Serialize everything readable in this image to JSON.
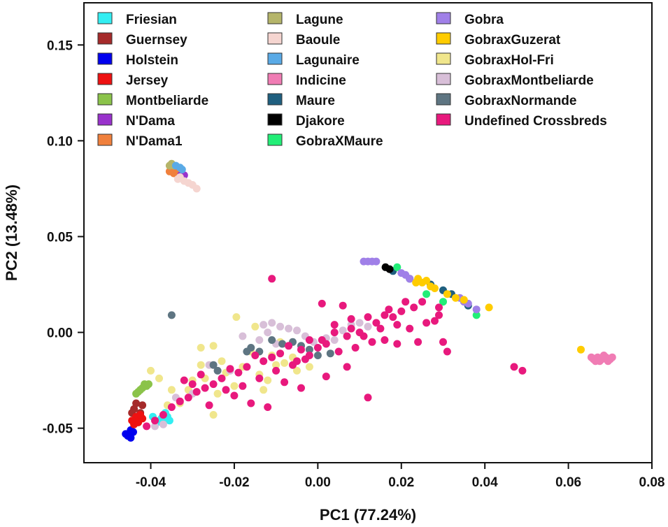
{
  "chart_data": {
    "type": "scatter",
    "xlabel": "PC1 (77.24%)",
    "ylabel": "PC2 (13.48%)",
    "xlim": [
      -0.056,
      0.08
    ],
    "ylim": [
      -0.068,
      0.172
    ],
    "x_ticks": [
      {
        "value": -0.04,
        "label": "-0.04"
      },
      {
        "value": -0.02,
        "label": "-0.02"
      },
      {
        "value": 0.0,
        "label": "0.00"
      },
      {
        "value": 0.02,
        "label": "0.02"
      },
      {
        "value": 0.04,
        "label": "0.04"
      },
      {
        "value": 0.06,
        "label": "0.06"
      },
      {
        "value": 0.08,
        "label": "0.08"
      }
    ],
    "y_ticks": [
      {
        "value": -0.05,
        "label": "-0.05"
      },
      {
        "value": 0.0,
        "label": "0.00"
      },
      {
        "value": 0.05,
        "label": "0.05"
      },
      {
        "value": 0.1,
        "label": "0.10"
      },
      {
        "value": 0.15,
        "label": "0.15"
      }
    ],
    "legend_position": "top",
    "series": [
      {
        "name": "Friesian",
        "color": "#33EEF2",
        "points": [
          [
            -0.0365,
            -0.042
          ],
          [
            -0.036,
            -0.044
          ],
          [
            -0.0355,
            -0.046
          ],
          [
            -0.037,
            -0.046
          ],
          [
            -0.0385,
            -0.047
          ],
          [
            -0.0395,
            -0.044
          ],
          [
            -0.0375,
            -0.045
          ]
        ]
      },
      {
        "name": "Guernsey",
        "color": "#A52A2A",
        "points": [
          [
            -0.0435,
            -0.037
          ],
          [
            -0.042,
            -0.038
          ],
          [
            -0.044,
            -0.04
          ],
          [
            -0.0425,
            -0.042
          ],
          [
            -0.0445,
            -0.042
          ]
        ]
      },
      {
        "name": "Holstein",
        "color": "#0000EE",
        "points": [
          [
            -0.0455,
            -0.054
          ],
          [
            -0.0448,
            -0.051
          ],
          [
            -0.0448,
            -0.055
          ],
          [
            -0.046,
            -0.053
          ],
          [
            -0.0442,
            -0.052
          ]
        ]
      },
      {
        "name": "Jersey",
        "color": "#EE1111",
        "points": [
          [
            -0.0435,
            -0.044
          ],
          [
            -0.043,
            -0.047
          ],
          [
            -0.044,
            -0.048
          ],
          [
            -0.042,
            -0.045
          ],
          [
            -0.0445,
            -0.046
          ],
          [
            -0.0425,
            -0.043
          ]
        ]
      },
      {
        "name": "Montbeliarde",
        "color": "#8BC34A",
        "points": [
          [
            -0.0415,
            -0.027
          ],
          [
            -0.041,
            -0.028
          ],
          [
            -0.042,
            -0.029
          ],
          [
            -0.0425,
            -0.03
          ],
          [
            -0.043,
            -0.031
          ],
          [
            -0.0435,
            -0.032
          ],
          [
            -0.0405,
            -0.027
          ]
        ]
      },
      {
        "name": "N'Dama",
        "color": "#9932CC",
        "points": [
          [
            -0.032,
            0.082
          ],
          [
            -0.0335,
            0.084
          ]
        ]
      },
      {
        "name": "N'Dama1",
        "color": "#F0803C",
        "points": [
          [
            -0.0355,
            0.084
          ],
          [
            -0.035,
            0.086
          ],
          [
            -0.0345,
            0.083
          ],
          [
            -0.034,
            0.085
          ]
        ]
      },
      {
        "name": "Lagune",
        "color": "#B5B56A",
        "points": [
          [
            -0.035,
            0.088
          ],
          [
            -0.0345,
            0.087
          ],
          [
            -0.0355,
            0.087
          ]
        ]
      },
      {
        "name": "Baoule",
        "color": "#F5D5D0",
        "points": [
          [
            -0.0335,
            0.08
          ],
          [
            -0.032,
            0.079
          ],
          [
            -0.031,
            0.078
          ],
          [
            -0.03,
            0.077
          ],
          [
            -0.029,
            0.075
          ],
          [
            -0.033,
            0.081
          ]
        ]
      },
      {
        "name": "Lagunaire",
        "color": "#5AAAE6",
        "points": [
          [
            -0.034,
            0.087
          ],
          [
            -0.033,
            0.086
          ],
          [
            -0.0325,
            0.085
          ]
        ]
      },
      {
        "name": "Indicine",
        "color": "#F07CB4",
        "points": [
          [
            0.066,
            -0.014
          ],
          [
            0.067,
            -0.013
          ],
          [
            0.068,
            -0.014
          ],
          [
            0.069,
            -0.013
          ],
          [
            0.07,
            -0.014
          ],
          [
            0.0675,
            -0.015
          ],
          [
            0.0685,
            -0.012
          ],
          [
            0.0695,
            -0.015
          ],
          [
            0.0655,
            -0.013
          ],
          [
            0.0665,
            -0.015
          ],
          [
            0.0705,
            -0.013
          ]
        ]
      },
      {
        "name": "Maure",
        "color": "#1F5F7F",
        "points": [
          [
            0.018,
            0.032
          ],
          [
            0.022,
            0.028
          ],
          [
            0.027,
            0.025
          ],
          [
            0.03,
            0.022
          ],
          [
            0.032,
            0.02
          ],
          [
            0.036,
            0.014
          ]
        ]
      },
      {
        "name": "Djakore",
        "color": "#000000",
        "points": [
          [
            0.0162,
            0.034
          ],
          [
            0.0172,
            0.033
          ]
        ]
      },
      {
        "name": "GobraXMaure",
        "color": "#22EE77",
        "points": [
          [
            0.019,
            0.034
          ],
          [
            0.026,
            0.02
          ],
          [
            0.03,
            0.016
          ],
          [
            0.038,
            0.009
          ]
        ]
      },
      {
        "name": "Gobra",
        "color": "#A080E8",
        "points": [
          [
            0.011,
            0.037
          ],
          [
            0.012,
            0.037
          ],
          [
            0.013,
            0.037
          ],
          [
            0.014,
            0.037
          ],
          [
            0.02,
            0.031
          ],
          [
            0.021,
            0.03
          ],
          [
            0.022,
            0.028
          ],
          [
            0.024,
            0.027
          ],
          [
            0.034,
            0.018
          ],
          [
            0.035,
            0.016
          ],
          [
            0.036,
            0.015
          ],
          [
            0.038,
            0.012
          ]
        ]
      },
      {
        "name": "GobraxGuzerat",
        "color": "#FFCC00",
        "points": [
          [
            0.0235,
            0.026
          ],
          [
            0.024,
            0.028
          ],
          [
            0.025,
            0.026
          ],
          [
            0.026,
            0.027
          ],
          [
            0.027,
            0.024
          ],
          [
            0.028,
            0.023
          ],
          [
            0.031,
            0.02
          ],
          [
            0.033,
            0.018
          ],
          [
            0.035,
            0.017
          ],
          [
            0.041,
            0.013
          ],
          [
            0.063,
            -0.009
          ]
        ]
      },
      {
        "name": "GobraxHol-Fri",
        "color": "#F0E68C",
        "points": [
          [
            -0.0195,
            0.008
          ],
          [
            -0.015,
            0.003
          ],
          [
            -0.025,
            -0.007
          ],
          [
            -0.028,
            -0.017
          ],
          [
            -0.04,
            -0.02
          ],
          [
            -0.038,
            -0.024
          ],
          [
            -0.035,
            -0.03
          ],
          [
            -0.033,
            -0.037
          ],
          [
            -0.036,
            -0.038
          ],
          [
            -0.03,
            -0.025
          ],
          [
            -0.027,
            -0.024
          ],
          [
            -0.022,
            -0.021
          ],
          [
            -0.018,
            -0.018
          ],
          [
            -0.014,
            -0.022
          ],
          [
            -0.011,
            -0.012
          ],
          [
            -0.008,
            -0.016
          ],
          [
            -0.005,
            -0.02
          ],
          [
            -0.002,
            -0.018
          ],
          [
            -0.012,
            -0.025
          ],
          [
            -0.023,
            -0.015
          ],
          [
            -0.016,
            -0.01
          ],
          [
            -0.01,
            -0.017
          ],
          [
            -0.006,
            -0.013
          ],
          [
            -0.028,
            -0.008
          ],
          [
            -0.025,
            -0.043
          ],
          [
            -0.013,
            -0.03
          ],
          [
            -0.02,
            -0.028
          ],
          [
            -0.009,
            -0.005
          ],
          [
            -0.031,
            -0.03
          ],
          [
            -0.024,
            -0.032
          ]
        ]
      },
      {
        "name": "GobraxMontbeliarde",
        "color": "#D8BFD8",
        "points": [
          [
            -0.011,
            0.005
          ],
          [
            -0.013,
            0.004
          ],
          [
            -0.009,
            0.003
          ],
          [
            -0.007,
            0.002
          ],
          [
            -0.005,
            0.001
          ],
          [
            -0.003,
            -0.002
          ],
          [
            -0.001,
            -0.005
          ],
          [
            0.002,
            -0.003
          ],
          [
            0.004,
            -0.004
          ],
          [
            0.006,
            0.001
          ],
          [
            -0.014,
            -0.004
          ],
          [
            -0.01,
            -0.006
          ],
          [
            -0.018,
            -0.002
          ],
          [
            0.008,
            0.004
          ],
          [
            0.01,
            0.005
          ],
          [
            0.012,
            0.003
          ],
          [
            -0.021,
            -0.02
          ],
          [
            -0.026,
            -0.017
          ],
          [
            -0.03,
            -0.032
          ],
          [
            -0.034,
            -0.034
          ],
          [
            -0.039,
            -0.049
          ],
          [
            -0.037,
            -0.048
          ],
          [
            -0.012,
            0.0
          ]
        ]
      },
      {
        "name": "GobraxNormande",
        "color": "#5E7582",
        "points": [
          [
            -0.035,
            0.009
          ],
          [
            -0.025,
            -0.017
          ],
          [
            -0.024,
            -0.02
          ],
          [
            -0.017,
            -0.01
          ],
          [
            -0.006,
            -0.005
          ],
          [
            -0.004,
            -0.007
          ],
          [
            -0.002,
            -0.009
          ],
          [
            0.0,
            -0.012
          ],
          [
            -0.0085,
            -0.006
          ],
          [
            -0.011,
            -0.004
          ],
          [
            -0.014,
            -0.01
          ],
          [
            0.003,
            -0.011
          ],
          [
            -0.016,
            -0.008
          ]
        ]
      },
      {
        "name": "Undefined Crossbreds",
        "color": "#E8197D",
        "points": [
          [
            -0.011,
            0.028
          ],
          [
            0.001,
            0.015
          ],
          [
            0.006,
            0.014
          ],
          [
            0.008,
            0.007
          ],
          [
            0.012,
            0.008
          ],
          [
            0.014,
            0.005
          ],
          [
            0.016,
            0.009
          ],
          [
            0.018,
            0.008
          ],
          [
            0.02,
            0.011
          ],
          [
            0.023,
            0.013
          ],
          [
            0.026,
            0.005
          ],
          [
            0.028,
            0.006
          ],
          [
            0.029,
            0.009
          ],
          [
            0.025,
            0.016
          ],
          [
            0.021,
            0.016
          ],
          [
            0.022,
            0.002
          ],
          [
            0.011,
            -0.002
          ],
          [
            0.016,
            -0.004
          ],
          [
            0.019,
            -0.006
          ],
          [
            0.024,
            -0.005
          ],
          [
            0.03,
            -0.005
          ],
          [
            0.031,
            -0.01
          ],
          [
            0.01,
            0.0
          ],
          [
            0.007,
            -0.002
          ],
          [
            0.004,
            0.0
          ],
          [
            0.002,
            -0.006
          ],
          [
            -0.002,
            -0.004
          ],
          [
            -0.004,
            -0.009
          ],
          [
            -0.007,
            -0.007
          ],
          [
            -0.009,
            -0.011
          ],
          [
            -0.011,
            -0.013
          ],
          [
            -0.013,
            -0.015
          ],
          [
            -0.015,
            -0.012
          ],
          [
            -0.017,
            -0.018
          ],
          [
            -0.019,
            -0.021
          ],
          [
            -0.021,
            -0.019
          ],
          [
            -0.023,
            -0.024
          ],
          [
            -0.025,
            -0.027
          ],
          [
            -0.027,
            -0.029
          ],
          [
            -0.029,
            -0.031
          ],
          [
            -0.031,
            -0.034
          ],
          [
            -0.033,
            -0.036
          ],
          [
            -0.035,
            -0.039
          ],
          [
            -0.037,
            -0.043
          ],
          [
            -0.039,
            -0.046
          ],
          [
            -0.041,
            -0.049
          ],
          [
            -0.026,
            -0.038
          ],
          [
            -0.02,
            -0.033
          ],
          [
            -0.016,
            -0.037
          ],
          [
            -0.012,
            -0.039
          ],
          [
            -0.004,
            -0.029
          ],
          [
            0.002,
            -0.023
          ],
          [
            0.007,
            -0.018
          ],
          [
            0.012,
            -0.034
          ],
          [
            0.047,
            -0.018
          ],
          [
            0.049,
            -0.02
          ],
          [
            0.029,
            0.013
          ],
          [
            -0.008,
            -0.026
          ],
          [
            -0.005,
            -0.015
          ],
          [
            -0.002,
            -0.012
          ],
          [
            0.0,
            -0.008
          ],
          [
            0.005,
            -0.01
          ],
          [
            0.009,
            -0.008
          ],
          [
            0.013,
            -0.005
          ],
          [
            0.015,
            0.002
          ],
          [
            0.017,
            0.012
          ],
          [
            0.019,
            0.004
          ],
          [
            -0.028,
            -0.022
          ],
          [
            -0.03,
            -0.027
          ],
          [
            -0.032,
            -0.025
          ],
          [
            -0.01,
            -0.02
          ],
          [
            -0.014,
            -0.024
          ],
          [
            -0.018,
            -0.028
          ],
          [
            -0.022,
            -0.03
          ],
          [
            -0.006,
            -0.017
          ],
          [
            -0.003,
            -0.014
          ],
          [
            0.001,
            -0.004
          ],
          [
            0.004,
            0.004
          ],
          [
            0.008,
            0.002
          ]
        ]
      }
    ]
  }
}
